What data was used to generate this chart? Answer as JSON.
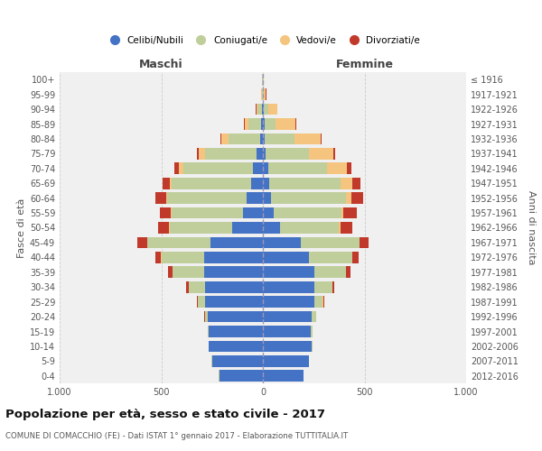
{
  "age_groups": [
    "0-4",
    "5-9",
    "10-14",
    "15-19",
    "20-24",
    "25-29",
    "30-34",
    "35-39",
    "40-44",
    "45-49",
    "50-54",
    "55-59",
    "60-64",
    "65-69",
    "70-74",
    "75-79",
    "80-84",
    "85-89",
    "90-94",
    "95-99",
    "100+"
  ],
  "birth_years": [
    "2012-2016",
    "2007-2011",
    "2002-2006",
    "1997-2001",
    "1992-1996",
    "1987-1991",
    "1982-1986",
    "1977-1981",
    "1972-1976",
    "1967-1971",
    "1962-1966",
    "1957-1961",
    "1952-1956",
    "1947-1951",
    "1942-1946",
    "1937-1941",
    "1932-1936",
    "1927-1931",
    "1922-1926",
    "1917-1921",
    "≤ 1916"
  ],
  "male": {
    "celibi": [
      215,
      250,
      265,
      265,
      270,
      285,
      285,
      290,
      290,
      260,
      150,
      100,
      80,
      60,
      50,
      30,
      15,
      10,
      5,
      2,
      2
    ],
    "coniugati": [
      1,
      2,
      2,
      5,
      15,
      35,
      80,
      155,
      210,
      310,
      310,
      350,
      390,
      390,
      340,
      255,
      155,
      60,
      20,
      3,
      1
    ],
    "vedovi": [
      0,
      0,
      0,
      0,
      1,
      1,
      1,
      1,
      1,
      1,
      2,
      2,
      5,
      10,
      25,
      30,
      35,
      20,
      8,
      2,
      0
    ],
    "divorziati": [
      0,
      0,
      0,
      0,
      2,
      5,
      10,
      20,
      30,
      45,
      55,
      55,
      55,
      35,
      20,
      10,
      5,
      3,
      2,
      0,
      0
    ]
  },
  "female": {
    "nubili": [
      200,
      225,
      240,
      235,
      240,
      255,
      255,
      255,
      225,
      185,
      85,
      55,
      40,
      30,
      25,
      15,
      10,
      10,
      5,
      2,
      2
    ],
    "coniugate": [
      1,
      2,
      3,
      8,
      20,
      40,
      85,
      155,
      215,
      290,
      290,
      330,
      370,
      350,
      290,
      210,
      145,
      50,
      20,
      3,
      1
    ],
    "vedove": [
      0,
      0,
      0,
      0,
      0,
      1,
      1,
      1,
      1,
      2,
      5,
      10,
      25,
      60,
      100,
      120,
      130,
      100,
      45,
      10,
      2
    ],
    "divorziate": [
      0,
      0,
      0,
      0,
      2,
      5,
      10,
      20,
      30,
      45,
      60,
      65,
      60,
      40,
      20,
      10,
      5,
      3,
      2,
      1,
      0
    ]
  },
  "colors": {
    "celibi_nubili": "#4472C4",
    "coniugati": "#BFCE9B",
    "vedovi": "#F5C47F",
    "divorziati": "#C0392B"
  },
  "title": "Popolazione per età, sesso e stato civile - 2017",
  "subtitle": "COMUNE DI COMACCHIO (FE) - Dati ISTAT 1° gennaio 2017 - Elaborazione TUTTITALIA.IT",
  "xlabel_left": "Maschi",
  "xlabel_right": "Femmine",
  "ylabel_left": "Fasce di età",
  "ylabel_right": "Anni di nascita",
  "xlim": 1000,
  "bg_color": "#ffffff",
  "plot_bg_color": "#f0f0f0",
  "grid_color": "#cccccc"
}
